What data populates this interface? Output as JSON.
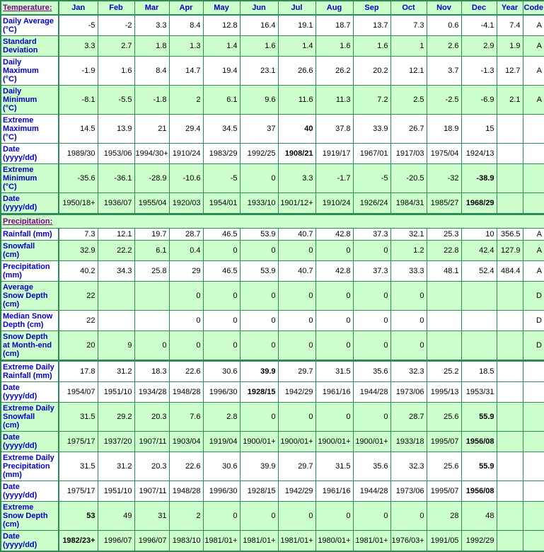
{
  "colors": {
    "border_green": "#2e8b57",
    "cell_green": "#ccffcc",
    "row_white": "#ffffff",
    "label_blue": "#0000cc",
    "section_purple": "#800080",
    "data_text": "#000000"
  },
  "chart_data": {
    "type": "table",
    "columns": [
      "Jan",
      "Feb",
      "Mar",
      "Apr",
      "May",
      "Jun",
      "Jul",
      "Aug",
      "Sep",
      "Oct",
      "Nov",
      "Dec",
      "Year",
      "Code"
    ],
    "column_keys": [
      "jan",
      "feb",
      "mar",
      "apr",
      "may",
      "jun",
      "jul",
      "aug",
      "sep",
      "oct",
      "nov",
      "dec",
      "year",
      "code"
    ],
    "sections": [
      {
        "id": "temperature",
        "header_label": "Temperature:",
        "columns_in_header": true,
        "rows": [
          {
            "key": "daily-average",
            "label": "Daily Average\n(°C)",
            "bg": "white",
            "bold": [],
            "values": [
              "-5",
              "-2",
              "3.3",
              "8.4",
              "12.8",
              "16.4",
              "19.1",
              "18.7",
              "13.7",
              "7.3",
              "0.6",
              "-4.1",
              "7.4",
              "A"
            ]
          },
          {
            "key": "standard-deviation",
            "label": "Standard\nDeviation",
            "bg": "green",
            "bold": [],
            "values": [
              "3.3",
              "2.7",
              "1.8",
              "1.3",
              "1.4",
              "1.6",
              "1.4",
              "1.6",
              "1.6",
              "1",
              "2.6",
              "2.9",
              "1.9",
              "A"
            ]
          },
          {
            "key": "daily-maximum",
            "label": "Daily\nMaximum\n(°C)",
            "bg": "white",
            "bold": [],
            "values": [
              "-1.9",
              "1.6",
              "8.4",
              "14.7",
              "19.4",
              "23.1",
              "26.6",
              "26.2",
              "20.2",
              "12.1",
              "3.7",
              "-1.3",
              "12.7",
              "A"
            ]
          },
          {
            "key": "daily-minimum",
            "label": "Daily\nMinimum\n(°C)",
            "bg": "green",
            "bold": [],
            "values": [
              "-8.1",
              "-5.5",
              "-1.8",
              "2",
              "6.1",
              "9.6",
              "11.6",
              "11.3",
              "7.2",
              "2.5",
              "-2.5",
              "-6.9",
              "2.1",
              "A"
            ]
          },
          {
            "key": "extreme-maximum",
            "label": "Extreme\nMaximum\n(°C)",
            "bg": "white",
            "bold": [
              6
            ],
            "values": [
              "14.5",
              "13.9",
              "21",
              "29.4",
              "34.5",
              "37",
              "40",
              "37.8",
              "33.9",
              "26.7",
              "18.9",
              "15",
              "",
              ""
            ]
          },
          {
            "key": "extreme-maximum-date",
            "label": "Date\n(yyyy/dd)",
            "bg": "white",
            "bold": [
              6
            ],
            "values": [
              "1989/30",
              "1953/06",
              "1994/30+",
              "1910/24",
              "1983/29",
              "1992/25",
              "1908/21",
              "1919/17",
              "1967/01",
              "1917/03",
              "1975/04",
              "1924/13",
              "",
              ""
            ]
          },
          {
            "key": "extreme-minimum",
            "label": "Extreme\nMinimum\n(°C)",
            "bg": "green",
            "bold": [
              11
            ],
            "values": [
              "-35.6",
              "-36.1",
              "-28.9",
              "-10.6",
              "-5",
              "0",
              "3.3",
              "-1.7",
              "-5",
              "-20.5",
              "-32",
              "-38.9",
              "",
              ""
            ]
          },
          {
            "key": "extreme-minimum-date",
            "label": "Date\n(yyyy/dd)",
            "bg": "green",
            "bold": [
              11
            ],
            "values": [
              "1950/18+",
              "1936/07",
              "1955/04",
              "1920/03",
              "1954/01",
              "1933/10",
              "1901/12+",
              "1910/24",
              "1926/24",
              "1984/31",
              "1985/27",
              "1968/29",
              "",
              ""
            ]
          }
        ]
      },
      {
        "id": "precipitation",
        "header_label": "Precipitation:",
        "columns_in_header": false,
        "rows": [
          {
            "key": "rainfall",
            "label": "Rainfall (mm)",
            "bg": "white",
            "bold": [],
            "values": [
              "7.3",
              "12.1",
              "19.7",
              "28.7",
              "46.5",
              "53.9",
              "40.7",
              "42.8",
              "37.3",
              "32.1",
              "25.3",
              "10",
              "356.5",
              "A"
            ]
          },
          {
            "key": "snowfall",
            "label": "Snowfall\n(cm)",
            "bg": "green",
            "bold": [],
            "values": [
              "32.9",
              "22.2",
              "6.1",
              "0.4",
              "0",
              "0",
              "0",
              "0",
              "0",
              "1.2",
              "22.8",
              "42.4",
              "127.9",
              "A"
            ]
          },
          {
            "key": "precipitation",
            "label": "Precipitation\n(mm)",
            "bg": "white",
            "bold": [],
            "values": [
              "40.2",
              "34.3",
              "25.8",
              "29",
              "46.5",
              "53.9",
              "40.7",
              "42.8",
              "37.3",
              "33.3",
              "48.1",
              "52.4",
              "484.4",
              "A"
            ]
          },
          {
            "key": "average-snow-depth",
            "label": "Average\nSnow Depth\n(cm)",
            "bg": "green",
            "bold": [],
            "values": [
              "22",
              "",
              "",
              "0",
              "0",
              "0",
              "0",
              "0",
              "0",
              "0",
              "",
              "",
              "",
              "D"
            ]
          },
          {
            "key": "median-snow-depth",
            "label": "Median Snow\nDepth (cm)",
            "bg": "white",
            "bold": [],
            "values": [
              "22",
              "",
              "",
              "0",
              "0",
              "0",
              "0",
              "0",
              "0",
              "0",
              "",
              "",
              "",
              "D"
            ]
          },
          {
            "key": "snow-depth-month-end",
            "label": "Snow Depth\nat Month-end\n(cm)",
            "bg": "green",
            "bold": [],
            "values": [
              "20",
              "9",
              "0",
              "0",
              "0",
              "0",
              "0",
              "0",
              "0",
              "0",
              "",
              "",
              "",
              "D"
            ]
          }
        ]
      },
      {
        "id": "extremes",
        "header_label": null,
        "columns_in_header": false,
        "rows": [
          {
            "key": "extreme-daily-rainfall",
            "label": "Extreme Daily\nRainfall (mm)",
            "bg": "white",
            "bold": [
              5
            ],
            "values": [
              "17.8",
              "31.2",
              "18.3",
              "22.6",
              "30.6",
              "39.9",
              "29.7",
              "31.5",
              "35.6",
              "32.3",
              "25.2",
              "18.5",
              "",
              ""
            ]
          },
          {
            "key": "extreme-daily-rainfall-date",
            "label": "Date\n(yyyy/dd)",
            "bg": "white",
            "bold": [
              5
            ],
            "values": [
              "1954/07",
              "1951/10",
              "1934/28",
              "1948/28",
              "1996/30",
              "1928/15",
              "1942/29",
              "1961/16",
              "1944/28",
              "1973/06",
              "1995/13",
              "1953/31",
              "",
              ""
            ]
          },
          {
            "key": "extreme-daily-snowfall",
            "label": "Extreme Daily\nSnowfall\n(cm)",
            "bg": "green",
            "bold": [
              11
            ],
            "values": [
              "31.5",
              "29.2",
              "20.3",
              "7.6",
              "2.8",
              "0",
              "0",
              "0",
              "0",
              "28.7",
              "25.6",
              "55.9",
              "",
              ""
            ]
          },
          {
            "key": "extreme-daily-snowfall-date",
            "label": "Date\n(yyyy/dd)",
            "bg": "green",
            "bold": [
              11
            ],
            "values": [
              "1975/17",
              "1937/20",
              "1907/11",
              "1903/04",
              "1919/04",
              "1900/01+",
              "1900/01+",
              "1900/01+",
              "1900/01+",
              "1933/18",
              "1995/07",
              "1956/08",
              "",
              ""
            ]
          },
          {
            "key": "extreme-daily-precipitation",
            "label": "Extreme Daily\nPrecipitation\n(mm)",
            "bg": "white",
            "bold": [
              11
            ],
            "values": [
              "31.5",
              "31.2",
              "20.3",
              "22.6",
              "30.6",
              "39.9",
              "29.7",
              "31.5",
              "35.6",
              "32.3",
              "25.6",
              "55.9",
              "",
              ""
            ]
          },
          {
            "key": "extreme-daily-precipitation-date",
            "label": "Date\n(yyyy/dd)",
            "bg": "white",
            "bold": [
              11
            ],
            "values": [
              "1975/17",
              "1951/10",
              "1907/11",
              "1948/28",
              "1996/30",
              "1928/15",
              "1942/29",
              "1961/16",
              "1944/28",
              "1973/06",
              "1995/07",
              "1956/08",
              "",
              ""
            ]
          },
          {
            "key": "extreme-snow-depth",
            "label": "Extreme\nSnow Depth\n(cm)",
            "bg": "green",
            "bold": [
              0
            ],
            "values": [
              "53",
              "49",
              "31",
              "2",
              "0",
              "0",
              "0",
              "0",
              "0",
              "0",
              "28",
              "48",
              "",
              ""
            ]
          },
          {
            "key": "extreme-snow-depth-date",
            "label": "Date\n(yyyy/dd)",
            "bg": "green",
            "bold": [
              0
            ],
            "values": [
              "1982/23+",
              "1996/07",
              "1996/07",
              "1983/10",
              "1981/01+",
              "1981/01+",
              "1981/01+",
              "1980/01+",
              "1981/01+",
              "1976/03+",
              "1991/05",
              "1992/29",
              "",
              ""
            ]
          }
        ]
      }
    ]
  }
}
